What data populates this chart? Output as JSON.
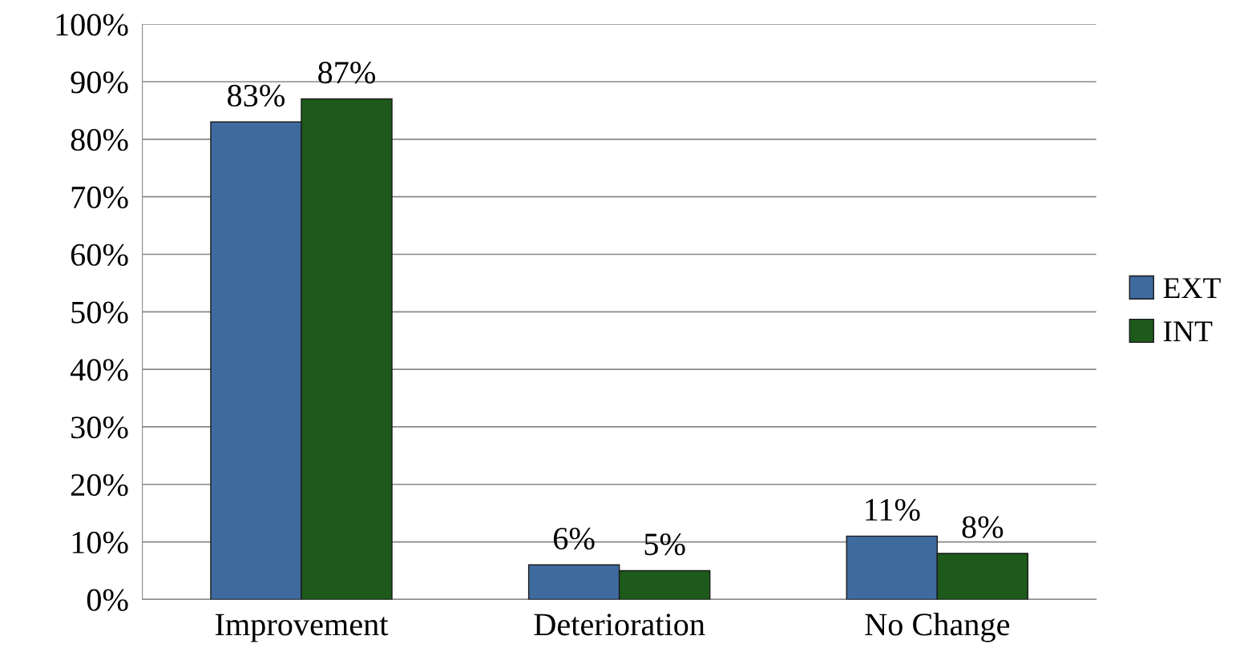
{
  "chart_data": {
    "type": "bar",
    "categories": [
      "Improvement",
      "Deterioration",
      "No Change"
    ],
    "series": [
      {
        "name": "EXT",
        "color": "#3f6a9e",
        "values": [
          83,
          6,
          11
        ]
      },
      {
        "name": "INT",
        "color": "#1d5a1b",
        "values": [
          87,
          5,
          8
        ]
      }
    ],
    "ylim": [
      0,
      100
    ],
    "yticks": [
      {
        "value": 0,
        "label": "0%"
      },
      {
        "value": 10,
        "label": "10%"
      },
      {
        "value": 20,
        "label": "20%"
      },
      {
        "value": 30,
        "label": "30%"
      },
      {
        "value": 40,
        "label": "40%"
      },
      {
        "value": 50,
        "label": "50%"
      },
      {
        "value": 60,
        "label": "60%"
      },
      {
        "value": 70,
        "label": "70%"
      },
      {
        "value": 80,
        "label": "80%"
      },
      {
        "value": 90,
        "label": "90%"
      },
      {
        "value": 100,
        "label": "100%"
      }
    ],
    "value_labels": [
      [
        "83%",
        "6%",
        "11%"
      ],
      [
        "87%",
        "5%",
        "8%"
      ]
    ],
    "grid": "y",
    "legend": "right"
  }
}
